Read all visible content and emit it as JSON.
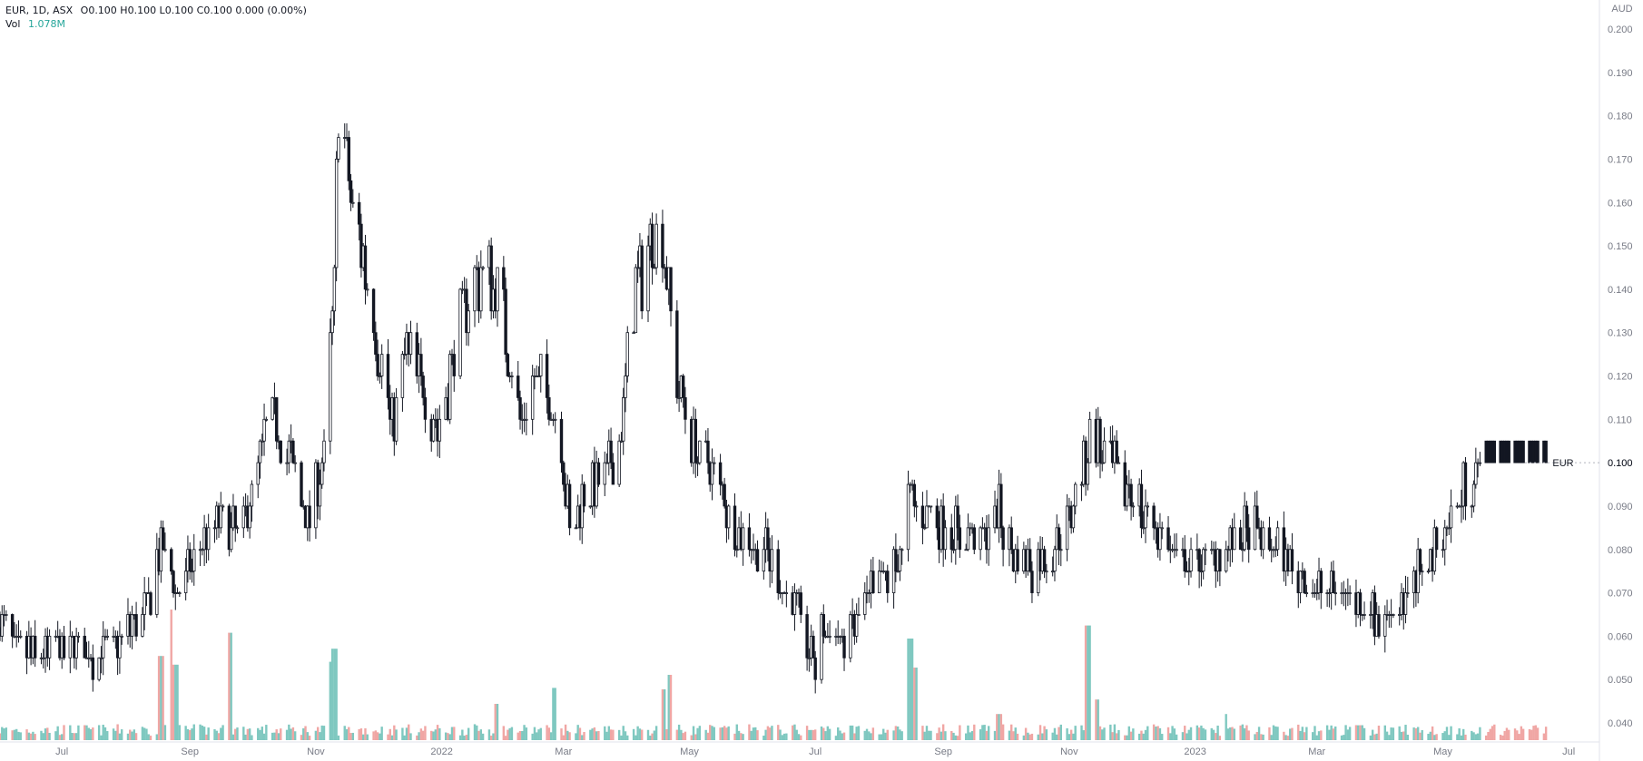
{
  "legend": {
    "symbol": "EUR, 1D, ASX",
    "ohlc": "O0.100  H0.100  L0.100  C0.100  0.000 (0.00%)",
    "vol_label": "Vol",
    "vol_value": "1.078M"
  },
  "price_label": {
    "ticker": "EUR",
    "price": "0.100"
  },
  "colors": {
    "up_volume": "#7fc8c0",
    "down_volume": "#f0a6a4",
    "candle": "#131722",
    "axis": "#787b86"
  },
  "chart_data": {
    "type": "candlestick",
    "currency": "AUD",
    "y_ticks": [
      "0.200",
      "0.190",
      "0.180",
      "0.170",
      "0.160",
      "0.150",
      "0.140",
      "0.130",
      "0.120",
      "0.110",
      "0.100",
      "0.090",
      "0.080",
      "0.070",
      "0.060",
      "0.050",
      "0.040"
    ],
    "ylim": [
      0.035,
      0.2
    ],
    "x_ticks": [
      "Jul",
      "Sep",
      "Nov",
      "2022",
      "Mar",
      "May",
      "Jul",
      "Sep",
      "Nov",
      "2023",
      "Mar",
      "May",
      "Jul"
    ],
    "x_tick_dates": [
      "2021-07-01",
      "2021-09-01",
      "2021-11-01",
      "2022-01-01",
      "2022-03-01",
      "2022-05-01",
      "2022-07-01",
      "2022-09-01",
      "2022-11-01",
      "2023-01-01",
      "2023-03-01",
      "2023-05-01",
      "2023-07-01"
    ],
    "x_range": [
      "2021-06-01",
      "2023-07-15"
    ],
    "close_path": [
      [
        "2021-06-01",
        0.062
      ],
      [
        "2021-06-10",
        0.058
      ],
      [
        "2021-06-20",
        0.054
      ],
      [
        "2021-06-30",
        0.058
      ],
      [
        "2021-07-15",
        0.055
      ],
      [
        "2021-07-28",
        0.058
      ],
      [
        "2021-08-05",
        0.063
      ],
      [
        "2021-08-12",
        0.068
      ],
      [
        "2021-08-18",
        0.082
      ],
      [
        "2021-08-25",
        0.07
      ],
      [
        "2021-09-05",
        0.078
      ],
      [
        "2021-09-15",
        0.088
      ],
      [
        "2021-09-25",
        0.082
      ],
      [
        "2021-10-05",
        0.1
      ],
      [
        "2021-10-10",
        0.112
      ],
      [
        "2021-10-20",
        0.1
      ],
      [
        "2021-10-28",
        0.086
      ],
      [
        "2021-11-05",
        0.1
      ],
      [
        "2021-11-10",
        0.14
      ],
      [
        "2021-11-12",
        0.185
      ],
      [
        "2021-11-18",
        0.16
      ],
      [
        "2021-11-25",
        0.145
      ],
      [
        "2021-12-02",
        0.125
      ],
      [
        "2021-12-08",
        0.108
      ],
      [
        "2021-12-15",
        0.125
      ],
      [
        "2021-12-22",
        0.118
      ],
      [
        "2021-12-30",
        0.108
      ],
      [
        "2022-01-08",
        0.128
      ],
      [
        "2022-01-15",
        0.14
      ],
      [
        "2022-01-22",
        0.145
      ],
      [
        "2022-01-27",
        0.14
      ],
      [
        "2022-02-02",
        0.128
      ],
      [
        "2022-02-08",
        0.11
      ],
      [
        "2022-02-15",
        0.118
      ],
      [
        "2022-02-22",
        0.115
      ],
      [
        "2022-02-28",
        0.105
      ],
      [
        "2022-03-04",
        0.083
      ],
      [
        "2022-03-10",
        0.092
      ],
      [
        "2022-03-20",
        0.095
      ],
      [
        "2022-03-28",
        0.105
      ],
      [
        "2022-04-05",
        0.14
      ],
      [
        "2022-04-12",
        0.15
      ],
      [
        "2022-04-18",
        0.155
      ],
      [
        "2022-04-25",
        0.12
      ],
      [
        "2022-05-02",
        0.105
      ],
      [
        "2022-05-15",
        0.095
      ],
      [
        "2022-05-25",
        0.082
      ],
      [
        "2022-06-05",
        0.08
      ],
      [
        "2022-06-15",
        0.072
      ],
      [
        "2022-06-25",
        0.062
      ],
      [
        "2022-07-01",
        0.053
      ],
      [
        "2022-07-05",
        0.062
      ],
      [
        "2022-07-15",
        0.058
      ],
      [
        "2022-07-25",
        0.068
      ],
      [
        "2022-08-05",
        0.074
      ],
      [
        "2022-08-12",
        0.08
      ],
      [
        "2022-08-16",
        0.093
      ],
      [
        "2022-08-25",
        0.088
      ],
      [
        "2022-09-05",
        0.085
      ],
      [
        "2022-09-18",
        0.082
      ],
      [
        "2022-09-28",
        0.088
      ],
      [
        "2022-10-05",
        0.078
      ],
      [
        "2022-10-15",
        0.076
      ],
      [
        "2022-10-25",
        0.08
      ],
      [
        "2022-11-05",
        0.092
      ],
      [
        "2022-11-12",
        0.106
      ],
      [
        "2022-11-20",
        0.1
      ],
      [
        "2022-11-30",
        0.094
      ],
      [
        "2022-12-10",
        0.086
      ],
      [
        "2022-12-25",
        0.078
      ],
      [
        "2023-01-05",
        0.076
      ],
      [
        "2023-01-15",
        0.08
      ],
      [
        "2023-01-25",
        0.084
      ],
      [
        "2023-02-05",
        0.082
      ],
      [
        "2023-02-15",
        0.077
      ],
      [
        "2023-02-25",
        0.072
      ],
      [
        "2023-03-05",
        0.069
      ],
      [
        "2023-03-15",
        0.07
      ],
      [
        "2023-03-22",
        0.068
      ],
      [
        "2023-04-01",
        0.063
      ],
      [
        "2023-04-10",
        0.068
      ],
      [
        "2023-04-20",
        0.074
      ],
      [
        "2023-04-28",
        0.082
      ],
      [
        "2023-05-08",
        0.09
      ],
      [
        "2023-05-15",
        0.097
      ],
      [
        "2023-05-22",
        0.1
      ],
      [
        "2023-06-20",
        0.1
      ]
    ],
    "volume_ylim": [
      0,
      12
    ],
    "volume_spikes_millions": [
      [
        "2021-08-18",
        5.8
      ],
      [
        "2021-08-22",
        9.0
      ],
      [
        "2021-08-25",
        5.2
      ],
      [
        "2021-09-20",
        7.4
      ],
      [
        "2021-11-08",
        5.4
      ],
      [
        "2021-11-10",
        6.3
      ],
      [
        "2022-01-28",
        2.5
      ],
      [
        "2022-02-25",
        3.6
      ],
      [
        "2022-04-18",
        3.5
      ],
      [
        "2022-04-22",
        4.5
      ],
      [
        "2022-08-16",
        7.0
      ],
      [
        "2022-08-19",
        5.0
      ],
      [
        "2022-09-28",
        1.8
      ],
      [
        "2022-11-10",
        7.9
      ],
      [
        "2022-11-14",
        2.8
      ],
      [
        "2023-01-15",
        1.8
      ]
    ]
  }
}
